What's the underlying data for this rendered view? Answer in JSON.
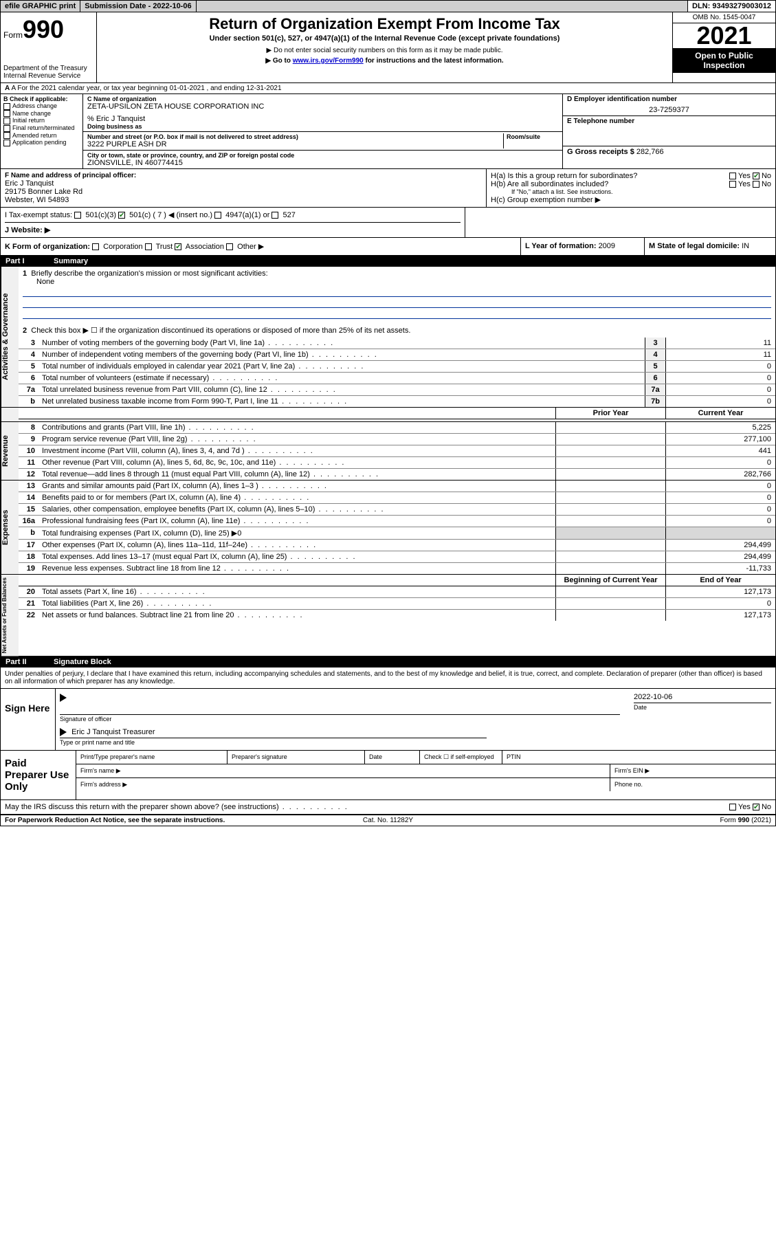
{
  "topbar": {
    "efile": "efile GRAPHIC print",
    "submission_label": "Submission Date - 2022-10-06",
    "dln": "DLN: 93493279003012"
  },
  "header": {
    "form_prefix": "Form",
    "form_number": "990",
    "dept": "Department of the Treasury",
    "irs": "Internal Revenue Service",
    "title": "Return of Organization Exempt From Income Tax",
    "subtitle": "Under section 501(c), 527, or 4947(a)(1) of the Internal Revenue Code (except private foundations)",
    "note1": "▶ Do not enter social security numbers on this form as it may be made public.",
    "note2_pre": "▶ Go to ",
    "note2_link": "www.irs.gov/Form990",
    "note2_post": " for instructions and the latest information.",
    "omb": "OMB No. 1545-0047",
    "year": "2021",
    "open": "Open to Public Inspection"
  },
  "row_a": "A For the 2021 calendar year, or tax year beginning 01-01-2021   , and ending 12-31-2021",
  "box_b": {
    "label": "B Check if applicable:",
    "items": [
      "Address change",
      "Name change",
      "Initial return",
      "Final return/terminated",
      "Amended return",
      "Application pending"
    ]
  },
  "box_c": {
    "name_label": "C Name of organization",
    "name": "ZETA-UPSILON ZETA HOUSE CORPORATION INC",
    "care_of": "% Eric J Tanquist",
    "dba_label": "Doing business as",
    "street_label": "Number and street (or P.O. box if mail is not delivered to street address)",
    "room_label": "Room/suite",
    "street": "3222 PURPLE ASH DR",
    "city_label": "City or town, state or province, country, and ZIP or foreign postal code",
    "city": "ZIONSVILLE, IN  460774415"
  },
  "box_d": {
    "label": "D Employer identification number",
    "value": "23-7259377"
  },
  "box_e": {
    "label": "E Telephone number"
  },
  "box_g": {
    "label": "G Gross receipts $ ",
    "value": "282,766"
  },
  "box_f": {
    "label": "F  Name and address of principal officer:",
    "name": "Eric J Tanquist",
    "addr1": "29175 Bonner Lake Rd",
    "addr2": "Webster, WI  54893"
  },
  "box_h": {
    "a": "H(a)  Is this a group return for subordinates?",
    "b": "H(b)  Are all subordinates included?",
    "note": "If \"No,\" attach a list. See instructions.",
    "c": "H(c)  Group exemption number ▶",
    "yes": "Yes",
    "no": "No"
  },
  "row_i": {
    "label": "I   Tax-exempt status:",
    "opts": [
      "501(c)(3)",
      "501(c) ( 7 ) ◀ (insert no.)",
      "4947(a)(1) or",
      "527"
    ]
  },
  "row_j": "J   Website: ▶",
  "row_k": {
    "label": "K Form of organization:",
    "opts": [
      "Corporation",
      "Trust",
      "Association",
      "Other ▶"
    ]
  },
  "row_l": {
    "label": "L Year of formation: ",
    "value": "2009"
  },
  "row_m": {
    "label": "M State of legal domicile: ",
    "value": "IN"
  },
  "part1": {
    "num": "Part I",
    "title": "Summary"
  },
  "summary": {
    "line1": "Briefly describe the organization's mission or most significant activities:",
    "line1_val": "None",
    "line2": "Check this box ▶ ☐  if the organization discontinued its operations or disposed of more than 25% of its net assets.",
    "lines": [
      {
        "n": "3",
        "d": "Number of voting members of the governing body (Part VI, line 1a)",
        "box": "3",
        "v": "11"
      },
      {
        "n": "4",
        "d": "Number of independent voting members of the governing body (Part VI, line 1b)",
        "box": "4",
        "v": "11"
      },
      {
        "n": "5",
        "d": "Total number of individuals employed in calendar year 2021 (Part V, line 2a)",
        "box": "5",
        "v": "0"
      },
      {
        "n": "6",
        "d": "Total number of volunteers (estimate if necessary)",
        "box": "6",
        "v": "0"
      },
      {
        "n": "7a",
        "d": "Total unrelated business revenue from Part VIII, column (C), line 12",
        "box": "7a",
        "v": "0"
      },
      {
        "n": "b",
        "d": "Net unrelated business taxable income from Form 990-T, Part I, line 11",
        "box": "7b",
        "v": "0"
      }
    ],
    "head_prior": "Prior Year",
    "head_current": "Current Year"
  },
  "revenue": [
    {
      "n": "8",
      "d": "Contributions and grants (Part VIII, line 1h)",
      "p": "",
      "c": "5,225"
    },
    {
      "n": "9",
      "d": "Program service revenue (Part VIII, line 2g)",
      "p": "",
      "c": "277,100"
    },
    {
      "n": "10",
      "d": "Investment income (Part VIII, column (A), lines 3, 4, and 7d )",
      "p": "",
      "c": "441"
    },
    {
      "n": "11",
      "d": "Other revenue (Part VIII, column (A), lines 5, 6d, 8c, 9c, 10c, and 11e)",
      "p": "",
      "c": "0"
    },
    {
      "n": "12",
      "d": "Total revenue—add lines 8 through 11 (must equal Part VIII, column (A), line 12)",
      "p": "",
      "c": "282,766"
    }
  ],
  "expenses": [
    {
      "n": "13",
      "d": "Grants and similar amounts paid (Part IX, column (A), lines 1–3 )",
      "p": "",
      "c": "0"
    },
    {
      "n": "14",
      "d": "Benefits paid to or for members (Part IX, column (A), line 4)",
      "p": "",
      "c": "0"
    },
    {
      "n": "15",
      "d": "Salaries, other compensation, employee benefits (Part IX, column (A), lines 5–10)",
      "p": "",
      "c": "0"
    },
    {
      "n": "16a",
      "d": "Professional fundraising fees (Part IX, column (A), line 11e)",
      "p": "",
      "c": "0"
    },
    {
      "n": "b",
      "d": "Total fundraising expenses (Part IX, column (D), line 25) ▶0",
      "p": "—",
      "c": "—"
    },
    {
      "n": "17",
      "d": "Other expenses (Part IX, column (A), lines 11a–11d, 11f–24e)",
      "p": "",
      "c": "294,499"
    },
    {
      "n": "18",
      "d": "Total expenses. Add lines 13–17 (must equal Part IX, column (A), line 25)",
      "p": "",
      "c": "294,499"
    },
    {
      "n": "19",
      "d": "Revenue less expenses. Subtract line 18 from line 12",
      "p": "",
      "c": "-11,733"
    }
  ],
  "netassets_head": {
    "begin": "Beginning of Current Year",
    "end": "End of Year"
  },
  "netassets": [
    {
      "n": "20",
      "d": "Total assets (Part X, line 16)",
      "p": "",
      "c": "127,173"
    },
    {
      "n": "21",
      "d": "Total liabilities (Part X, line 26)",
      "p": "",
      "c": "0"
    },
    {
      "n": "22",
      "d": "Net assets or fund balances. Subtract line 21 from line 20",
      "p": "",
      "c": "127,173"
    }
  ],
  "part2": {
    "num": "Part II",
    "title": "Signature Block"
  },
  "penalty": "Under penalties of perjury, I declare that I have examined this return, including accompanying schedules and statements, and to the best of my knowledge and belief, it is true, correct, and complete. Declaration of preparer (other than officer) is based on all information of which preparer has any knowledge.",
  "sign": {
    "here": "Sign Here",
    "sig_label": "Signature of officer",
    "date": "2022-10-06",
    "date_label": "Date",
    "name": "Eric J Tanquist Treasurer",
    "name_label": "Type or print name and title"
  },
  "paid": {
    "title": "Paid Preparer Use Only",
    "h1": "Print/Type preparer's name",
    "h2": "Preparer's signature",
    "h3": "Date",
    "h4_pre": "Check ☐ if self-employed",
    "h5": "PTIN",
    "firm_name": "Firm's name   ▶",
    "firm_ein": "Firm's EIN ▶",
    "firm_addr": "Firm's address ▶",
    "phone": "Phone no."
  },
  "may_discuss": "May the IRS discuss this return with the preparer shown above? (see instructions)",
  "footer": {
    "left": "For Paperwork Reduction Act Notice, see the separate instructions.",
    "mid": "Cat. No. 11282Y",
    "right_pre": "Form ",
    "right_bold": "990",
    "right_post": " (2021)"
  },
  "side_tabs": {
    "gov": "Activities & Governance",
    "rev": "Revenue",
    "exp": "Expenses",
    "net": "Net Assets or Fund Balances"
  }
}
